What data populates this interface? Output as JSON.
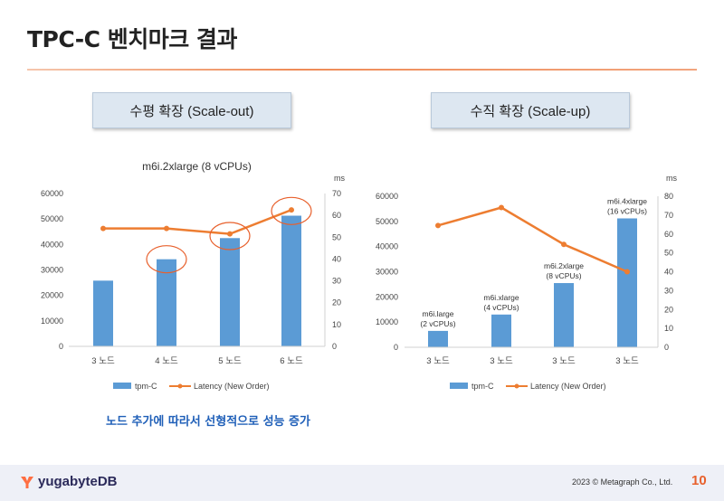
{
  "page": {
    "title": "TPC-C 벤치마크 결과",
    "caption": "노드 추가에 따라서 선형적으로 성능 증가",
    "copyright": "2023 © Metagraph Co., Ltd.",
    "page_number": "10",
    "logo_text": "yugabyteDB",
    "accent_color": "#e8602c",
    "bar_color": "#5b9bd5",
    "line_color": "#ed7d31",
    "highlight_color": "#e8602c"
  },
  "panels": {
    "left_label": "수평 확장 (Scale-out)",
    "right_label": "수직 확장 (Scale-up)"
  },
  "chart_data": [
    {
      "type": "bar",
      "title": "m6i.2xlarge (8 vCPUs)",
      "categories": [
        "3 노드",
        "4 노드",
        "5 노드",
        "6 노드"
      ],
      "series": [
        {
          "name": "tpm-C",
          "kind": "bar",
          "axis": "left",
          "values": [
            25800,
            34200,
            42500,
            51300
          ]
        },
        {
          "name": "Latency (New Order)",
          "kind": "line",
          "axis": "right",
          "values": [
            54,
            54,
            51.5,
            62.5
          ]
        }
      ],
      "ylim": [
        0,
        60000
      ],
      "yticks": [
        0,
        10000,
        20000,
        30000,
        40000,
        50000,
        60000
      ],
      "y2label": "ms",
      "y2lim": [
        0,
        70
      ],
      "y2ticks": [
        0,
        10,
        20,
        30,
        40,
        50,
        60,
        70
      ],
      "highlighted_categories": [
        1,
        2,
        3
      ],
      "bar_labels": [
        "",
        "",
        "",
        ""
      ],
      "legend_position": "bottom"
    },
    {
      "type": "bar",
      "title": "",
      "categories": [
        "3 노드",
        "3 노드",
        "3 노드",
        "3 노드"
      ],
      "series": [
        {
          "name": "tpm-C",
          "kind": "bar",
          "axis": "left",
          "values": [
            6500,
            13000,
            25500,
            51200
          ]
        },
        {
          "name": "Latency (New Order)",
          "kind": "line",
          "axis": "right",
          "values": [
            64.5,
            74,
            54.5,
            40
          ]
        }
      ],
      "ylim": [
        0,
        60000
      ],
      "yticks": [
        0,
        10000,
        20000,
        30000,
        40000,
        50000,
        60000
      ],
      "y2label": "ms",
      "y2lim": [
        0,
        80
      ],
      "y2ticks": [
        0,
        10,
        20,
        30,
        40,
        50,
        60,
        70,
        80
      ],
      "highlighted_categories": [],
      "bar_labels": [
        [
          "m6i.large",
          "(2 vCPUs)"
        ],
        [
          "m6i.xlarge",
          "(4 vCPUs)"
        ],
        [
          "m6i.2xlarge",
          "(8 vCPUs)"
        ],
        [
          "m6i.4xlarge",
          "(16 vCPUs)"
        ]
      ],
      "legend_position": "bottom"
    }
  ]
}
